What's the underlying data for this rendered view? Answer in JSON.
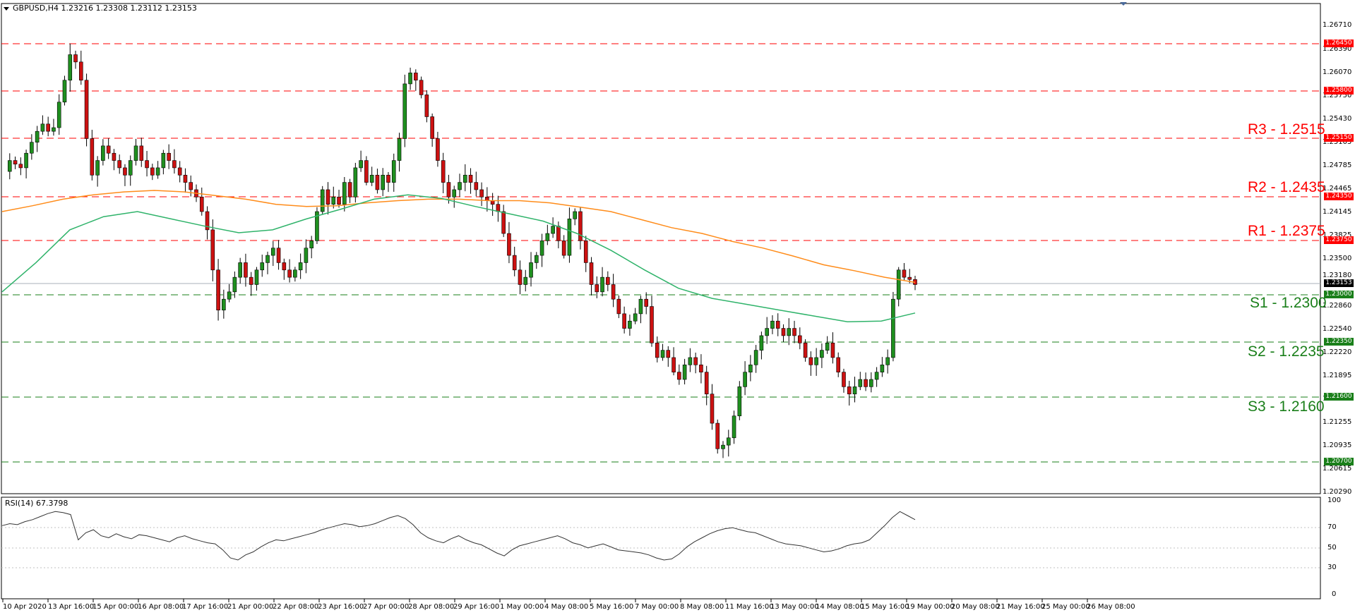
{
  "chart_window": {
    "title": "GBPUSD,H4  1.23216 1.23308 1.23112 1.23153",
    "current_price": "1.23153",
    "price_axis_labels": [
      "1.26710",
      "1.26390",
      "1.26070",
      "1.25750",
      "1.25430",
      "1.25105",
      "1.24785",
      "1.24465",
      "1.24145",
      "1.23825",
      "1.23500",
      "1.23180",
      "1.22860",
      "1.22540",
      "1.22220",
      "1.21895",
      "1.21575",
      "1.21255",
      "1.20935",
      "1.20615",
      "1.20290"
    ],
    "resistance_badges": [
      "1.26450",
      "1.25800",
      "1.25150",
      "1.24350",
      "1.23750"
    ],
    "support_badges": [
      "1.23000",
      "1.22350",
      "1.21600",
      "1.20700"
    ],
    "level_labels": {
      "r3": "R3 - 1.2515",
      "r2": "R2 - 1.2435",
      "r1": "R1 - 1.2375",
      "s1": "S1 - 1.2300",
      "s2": "S2 - 1.2235",
      "s3": "S3 - 1.2160"
    },
    "colors": {
      "resistance": "#ff0000",
      "support": "#1a7f1a",
      "ma_slow": "#ff8c1a",
      "ma_fast": "#2fb36a",
      "bull_candle": "#1f8f1f",
      "bear_candle": "#cc1111"
    }
  },
  "rsi_panel": {
    "title": "RSI(14) 67.3798",
    "axis_labels": [
      "100",
      "70",
      "50",
      "30",
      "0"
    ]
  },
  "time_axis": {
    "labels": [
      "10 Apr 2020",
      "13 Apr 16:00",
      "15 Apr 00:00",
      "16 Apr 08:00",
      "17 Apr 16:00",
      "21 Apr 00:00",
      "22 Apr 08:00",
      "23 Apr 16:00",
      "27 Apr 00:00",
      "28 Apr 08:00",
      "29 Apr 16:00",
      "1 May 00:00",
      "4 May 08:00",
      "5 May 16:00",
      "7 May 00:00",
      "8 May 08:00",
      "11 May 16:00",
      "13 May 00:00",
      "14 May 08:00",
      "15 May 16:00",
      "19 May 00:00",
      "20 May 08:00",
      "21 May 16:00",
      "25 May 00:00",
      "26 May 08:00"
    ]
  },
  "chart_data": {
    "type": "candlestick",
    "title": "GBPUSD,H4",
    "ohlc_last": {
      "open": 1.23216,
      "high": 1.23308,
      "low": 1.23112,
      "close": 1.23153
    },
    "ylim": [
      1.2029,
      1.2685
    ],
    "resistance_levels": [
      1.2645,
      1.258,
      1.2515,
      1.2435,
      1.2375
    ],
    "support_levels": [
      1.23,
      1.2235,
      1.216,
      1.207
    ],
    "x_labels": [
      "10 Apr 2020",
      "13 Apr 16:00",
      "15 Apr 00:00",
      "16 Apr 08:00",
      "17 Apr 16:00",
      "21 Apr 00:00",
      "22 Apr 08:00",
      "23 Apr 16:00",
      "27 Apr 00:00",
      "28 Apr 08:00",
      "29 Apr 16:00",
      "1 May 00:00",
      "4 May 08:00",
      "5 May 16:00",
      "7 May 00:00",
      "8 May 08:00",
      "11 May 16:00",
      "13 May 00:00",
      "14 May 08:00",
      "15 May 16:00",
      "19 May 00:00",
      "20 May 08:00",
      "21 May 16:00",
      "25 May 00:00",
      "26 May 08:00"
    ],
    "price_path": [
      1.247,
      1.2485,
      1.248,
      1.2475,
      1.2495,
      1.251,
      1.2525,
      1.2535,
      1.2525,
      1.253,
      1.2565,
      1.2595,
      1.263,
      1.262,
      1.2595,
      1.2515,
      1.2465,
      1.2485,
      1.2505,
      1.2495,
      1.2485,
      1.2475,
      1.2465,
      1.2485,
      1.2505,
      1.2485,
      1.2475,
      1.2465,
      1.2475,
      1.2495,
      1.2485,
      1.2475,
      1.2465,
      1.2455,
      1.2445,
      1.2435,
      1.2415,
      1.239,
      1.2335,
      1.228,
      1.2295,
      1.2305,
      1.2325,
      1.2345,
      1.2325,
      1.2315,
      1.2335,
      1.2345,
      1.2355,
      1.2365,
      1.2345,
      1.2335,
      1.2325,
      1.2335,
      1.2345,
      1.2365,
      1.2375,
      1.2415,
      1.2445,
      1.2425,
      1.2435,
      1.2425,
      1.2455,
      1.2435,
      1.2475,
      1.2485,
      1.2455,
      1.2465,
      1.2445,
      1.2465,
      1.2455,
      1.2485,
      1.2515,
      1.259,
      1.2605,
      1.2595,
      1.2575,
      1.2545,
      1.2515,
      1.2485,
      1.2455,
      1.2435,
      1.2445,
      1.2455,
      1.2465,
      1.2455,
      1.2445,
      1.2435,
      1.243,
      1.2425,
      1.2415,
      1.2385,
      1.2355,
      1.2335,
      1.2315,
      1.2325,
      1.2345,
      1.2355,
      1.2375,
      1.2385,
      1.2395,
      1.2375,
      1.2355,
      1.2405,
      1.2415,
      1.2375,
      1.2345,
      1.2315,
      1.2305,
      1.2325,
      1.2315,
      1.2295,
      1.2275,
      1.2255,
      1.2265,
      1.2275,
      1.2295,
      1.2285,
      1.2235,
      1.2215,
      1.2225,
      1.2215,
      1.2195,
      1.2185,
      1.2205,
      1.2215,
      1.2205,
      1.2195,
      1.2165,
      1.2125,
      1.209,
      1.2095,
      1.2105,
      1.2135,
      1.2175,
      1.2195,
      1.2205,
      1.2225,
      1.2245,
      1.2255,
      1.2265,
      1.2255,
      1.2245,
      1.2255,
      1.2245,
      1.2235,
      1.2215,
      1.2205,
      1.2215,
      1.2225,
      1.2235,
      1.2215,
      1.2195,
      1.2175,
      1.2165,
      1.2175,
      1.2185,
      1.2175,
      1.2185,
      1.2195,
      1.2205,
      1.2215,
      1.2295,
      1.2335,
      1.2325,
      1.2322,
      1.2315
    ],
    "rsi_path": [
      62,
      64,
      63,
      66,
      68,
      71,
      74,
      76,
      75,
      73,
      48,
      55,
      58,
      52,
      50,
      54,
      51,
      49,
      53,
      52,
      50,
      48,
      46,
      50,
      52,
      49,
      47,
      45,
      44,
      38,
      30,
      28,
      33,
      36,
      41,
      45,
      48,
      47,
      49,
      51,
      53,
      55,
      58,
      60,
      62,
      64,
      63,
      61,
      62,
      64,
      67,
      70,
      72,
      69,
      63,
      55,
      50,
      47,
      45,
      49,
      52,
      48,
      45,
      43,
      39,
      35,
      32,
      38,
      42,
      44,
      46,
      48,
      50,
      52,
      49,
      45,
      43,
      40,
      42,
      44,
      41,
      38,
      37,
      36,
      35,
      33,
      30,
      28,
      29,
      34,
      41,
      46,
      50,
      54,
      57,
      59,
      60,
      58,
      56,
      55,
      52,
      49,
      46,
      44,
      43,
      42,
      40,
      38,
      36,
      37,
      39,
      42,
      44,
      45,
      48,
      55,
      62,
      70,
      76,
      72,
      68
    ],
    "ma_slow_path": [
      1.2415,
      1.2423,
      1.2432,
      1.2438,
      1.2442,
      1.2444,
      1.2442,
      1.2437,
      1.2432,
      1.2425,
      1.2422,
      1.2423,
      1.2427,
      1.243,
      1.2432,
      1.2432,
      1.243,
      1.243,
      1.2427,
      1.2421,
      1.2415,
      1.2404,
      1.2393,
      1.2385,
      1.2374,
      1.2365,
      1.2354,
      1.2342,
      1.2334,
      1.2325,
      1.2318
    ],
    "ma_fast_path": [
      1.2305,
      1.2345,
      1.239,
      1.2408,
      1.2415,
      1.2405,
      1.2395,
      1.2386,
      1.239,
      1.2405,
      1.2418,
      1.2432,
      1.2438,
      1.2433,
      1.2422,
      1.2412,
      1.2402,
      1.2385,
      1.2362,
      1.2335,
      1.231,
      1.2296,
      1.2288,
      1.228,
      1.2272,
      1.2264,
      1.2265,
      1.2276
    ]
  }
}
